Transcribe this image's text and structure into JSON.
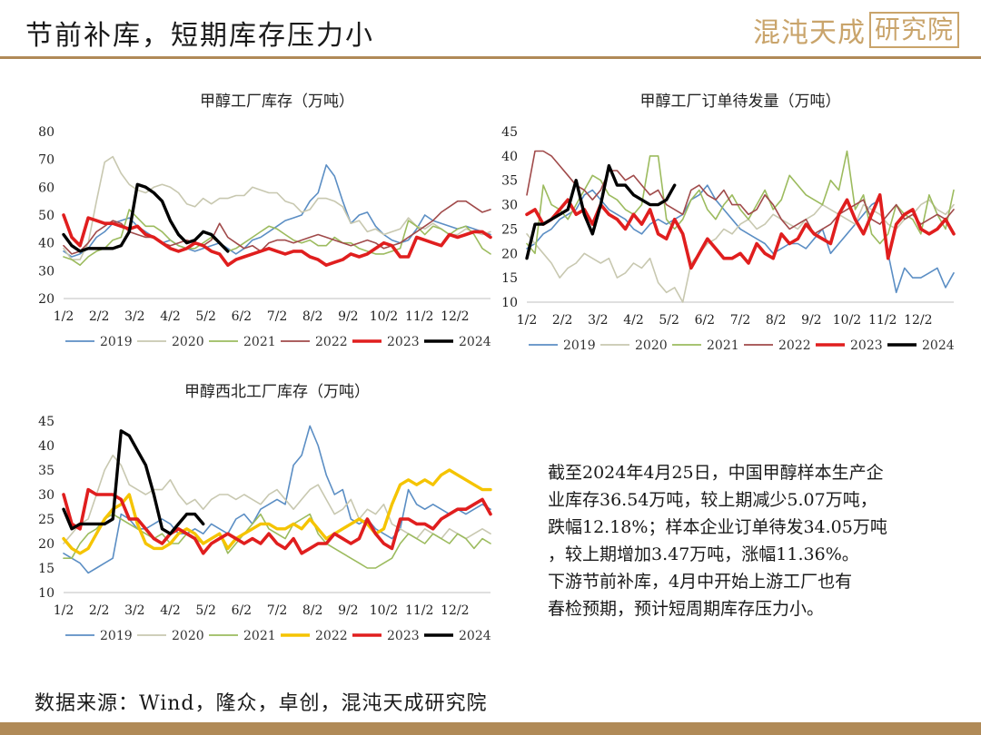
{
  "header": {
    "title": "节前补库，短期库存压力小",
    "brand_main": "混沌天成",
    "brand_box": "研究院"
  },
  "colors": {
    "accent_gold": "#b08a57",
    "s2019": "#5b8ec4",
    "s2020": "#c8c8b0",
    "s2021": "#9cbb5e",
    "s2022_chart12": "#a04a4a",
    "s2022_chart3": "#f5c400",
    "s2023": "#e01e1e",
    "s2024": "#000000"
  },
  "info": {
    "lines": [
      "截至2024年4月25日，中国甲醇样本生产企",
      "业库存36.54万吨，较上期减少5.07万吨，",
      "跌幅12.18%；样本企业订单待发34.05万吨",
      "，较上期增加3.47万吨，涨幅11.36%。",
      "下游节前补库，4月中开始上游工厂也有",
      "春检预期，预计短周期库存压力小。"
    ]
  },
  "source": "数据来源：Wind，隆众，卓创，混沌天成研究院",
  "chart_data": [
    {
      "type": "line",
      "title": "甲醇工厂库存（万吨）",
      "x_labels": [
        "1/2",
        "2/2",
        "3/2",
        "4/2",
        "5/2",
        "6/2",
        "7/2",
        "8/2",
        "9/2",
        "10/2",
        "11/2",
        "12/2"
      ],
      "x_range": [
        0,
        52
      ],
      "ylim": [
        20,
        80
      ],
      "yticks": [
        20,
        30,
        40,
        50,
        60,
        70,
        80
      ],
      "legend": "bottom",
      "series": [
        {
          "name": "2019",
          "color": "#5b8ec4",
          "width": 1.6,
          "values": [
            37,
            35,
            36,
            38,
            42,
            44,
            47,
            48,
            49,
            46,
            44,
            42,
            40,
            41,
            39,
            38,
            37,
            38,
            39,
            40,
            38,
            36,
            38,
            41,
            42,
            44,
            46,
            48,
            49,
            50,
            55,
            58,
            68,
            64,
            55,
            47,
            50,
            51,
            46,
            43,
            41,
            40,
            41,
            45,
            50,
            48,
            47,
            46,
            45,
            46,
            45,
            44,
            43
          ]
        },
        {
          "name": "2020",
          "color": "#c8c8b0",
          "width": 1.6,
          "values": [
            38,
            34,
            34,
            40,
            55,
            69,
            71,
            65,
            61,
            59,
            58,
            60,
            61,
            60,
            58,
            54,
            53,
            56,
            54,
            56,
            56,
            57,
            57,
            60,
            59,
            58,
            58,
            55,
            54,
            51,
            52,
            56,
            56,
            55,
            53,
            47,
            48,
            44,
            45,
            43,
            44,
            45,
            49,
            46,
            45,
            47,
            45,
            43,
            43,
            45,
            44,
            43,
            44
          ]
        },
        {
          "name": "2021",
          "color": "#9cbb5e",
          "width": 1.6,
          "values": [
            35,
            34,
            32,
            35,
            37,
            38,
            41,
            42,
            52,
            49,
            46,
            46,
            44,
            41,
            39,
            38,
            38,
            40,
            42,
            40,
            37,
            38,
            40,
            42,
            44,
            46,
            45,
            43,
            41,
            40,
            41,
            39,
            39,
            42,
            40,
            40,
            38,
            37,
            36,
            36,
            37,
            38,
            48,
            46,
            43,
            46,
            45,
            43,
            45,
            46,
            43,
            38,
            36
          ]
        },
        {
          "name": "2022",
          "color": "#a04a4a",
          "width": 1.6,
          "values": [
            39,
            36,
            37,
            40,
            44,
            46,
            48,
            47,
            44,
            43,
            42,
            42,
            40,
            39,
            40,
            41,
            40,
            39,
            41,
            47,
            42,
            40,
            38,
            39,
            37,
            40,
            41,
            41,
            40,
            41,
            42,
            43,
            42,
            41,
            40,
            39,
            40,
            41,
            40,
            38,
            39,
            40,
            42,
            44,
            46,
            48,
            51,
            53,
            55,
            55,
            53,
            51,
            52
          ]
        },
        {
          "name": "2023",
          "color": "#e01e1e",
          "width": 3.6,
          "values": [
            50,
            42,
            39,
            49,
            48,
            47,
            47,
            46,
            45,
            46,
            43,
            42,
            40,
            38,
            37,
            38,
            40,
            39,
            37,
            36,
            32,
            34,
            35,
            36,
            37,
            38,
            37,
            36,
            37,
            37,
            35,
            34,
            32,
            33,
            34,
            36,
            35,
            36,
            38,
            40,
            39,
            35,
            35,
            42,
            41,
            40,
            39,
            43,
            42,
            43,
            44,
            44,
            42
          ]
        },
        {
          "name": "2024",
          "color": "#000000",
          "width": 3.4,
          "values": [
            43,
            39,
            37,
            38,
            38,
            38,
            38,
            39,
            44,
            61,
            60,
            58,
            55,
            48,
            43,
            40,
            41,
            44,
            43,
            40,
            37
          ]
        }
      ]
    },
    {
      "type": "line",
      "title": "甲醇工厂订单待发量（万吨）",
      "x_labels": [
        "1/2",
        "2/2",
        "3/2",
        "4/2",
        "5/2",
        "6/2",
        "7/2",
        "8/2",
        "9/2",
        "10/2",
        "11/2",
        "12/2"
      ],
      "x_range": [
        0,
        52
      ],
      "ylim": [
        10,
        45
      ],
      "yticks": [
        10,
        15,
        20,
        25,
        30,
        35,
        40,
        45
      ],
      "legend": "bottom",
      "series": [
        {
          "name": "2019",
          "color": "#5b8ec4",
          "width": 1.6,
          "values": [
            21,
            22,
            24,
            25,
            27,
            28,
            29,
            32,
            33,
            31,
            29,
            28,
            27,
            25,
            24,
            26,
            27,
            26,
            27,
            28,
            31,
            32,
            34,
            31,
            29,
            27,
            25,
            24,
            23,
            22,
            20,
            21,
            22,
            22,
            21,
            23,
            25,
            20,
            22,
            24,
            26,
            28,
            30,
            31,
            20,
            12,
            17,
            15,
            15,
            16,
            17,
            13,
            16
          ]
        },
        {
          "name": "2020",
          "color": "#c8c8b0",
          "width": 1.6,
          "values": [
            24,
            22,
            20,
            18,
            15,
            17,
            18,
            20,
            19,
            18,
            19,
            15,
            16,
            18,
            17,
            19,
            14,
            12,
            13,
            10,
            18,
            20,
            22,
            23,
            25,
            24,
            26,
            27,
            25,
            26,
            28,
            27,
            26,
            25,
            27,
            28,
            30,
            29,
            28,
            27,
            26,
            30,
            29,
            28,
            26,
            25,
            27,
            28,
            30,
            31,
            29,
            28,
            30
          ]
        },
        {
          "name": "2021",
          "color": "#9cbb5e",
          "width": 1.6,
          "values": [
            22,
            20,
            34,
            30,
            29,
            27,
            30,
            33,
            36,
            35,
            32,
            31,
            29,
            28,
            30,
            40,
            40,
            27,
            25,
            27,
            31,
            33,
            29,
            27,
            30,
            32,
            29,
            27,
            30,
            33,
            29,
            31,
            36,
            34,
            32,
            31,
            30,
            35,
            33,
            41,
            29,
            32,
            24,
            22,
            24,
            30,
            28,
            27,
            24,
            32,
            28,
            25,
            33
          ]
        },
        {
          "name": "2022",
          "color": "#a04a4a",
          "width": 1.6,
          "values": [
            32,
            41,
            41,
            40,
            38,
            36,
            34,
            33,
            31,
            33,
            37,
            37,
            35,
            36,
            34,
            32,
            33,
            30,
            29,
            28,
            33,
            34,
            32,
            31,
            33,
            30,
            30,
            28,
            29,
            32,
            30,
            27,
            25,
            26,
            27,
            24,
            25,
            26,
            28,
            29,
            30,
            31,
            27,
            26,
            28,
            30,
            27,
            28,
            26,
            27,
            28,
            27,
            29
          ]
        },
        {
          "name": "2023",
          "color": "#e01e1e",
          "width": 3.6,
          "values": [
            28,
            29,
            26,
            27,
            29,
            31,
            28,
            29,
            26,
            30,
            28,
            27,
            25,
            28,
            26,
            29,
            24,
            23,
            27,
            24,
            17,
            20,
            23,
            21,
            19,
            19,
            20,
            18,
            22,
            20,
            19,
            24,
            22,
            23,
            26,
            24,
            23,
            22,
            28,
            31,
            27,
            24,
            28,
            32,
            19,
            26,
            28,
            29,
            25,
            24,
            25,
            27,
            24
          ]
        },
        {
          "name": "2024",
          "color": "#000000",
          "width": 3.4,
          "values": [
            19,
            26,
            26,
            27,
            28,
            29,
            35,
            28,
            24,
            30,
            38,
            34,
            34,
            32,
            31,
            30,
            30,
            31,
            34
          ]
        }
      ]
    },
    {
      "type": "line",
      "title": "甲醇西北工厂库存（万吨）",
      "x_labels": [
        "1/2",
        "2/2",
        "3/2",
        "4/2",
        "5/2",
        "6/2",
        "7/2",
        "8/2",
        "9/2",
        "10/2",
        "11/2",
        "12/2"
      ],
      "x_range": [
        0,
        52
      ],
      "ylim": [
        10,
        45
      ],
      "yticks": [
        10,
        15,
        20,
        25,
        30,
        35,
        40,
        45
      ],
      "legend": "bottom",
      "series": [
        {
          "name": "2019",
          "color": "#5b8ec4",
          "width": 1.6,
          "values": [
            18,
            17,
            16,
            14,
            15,
            16,
            17,
            26,
            25,
            23,
            23,
            24,
            25,
            24,
            22,
            22,
            23,
            22,
            24,
            23,
            22,
            25,
            26,
            24,
            27,
            28,
            29,
            28,
            36,
            38,
            44,
            40,
            34,
            30,
            31,
            25,
            24,
            25,
            23,
            22,
            21,
            23,
            31,
            28,
            27,
            28,
            27,
            26,
            27,
            26,
            27,
            28,
            27
          ]
        },
        {
          "name": "2020",
          "color": "#c8c8b0",
          "width": 1.6,
          "values": [
            20,
            22,
            24,
            25,
            30,
            35,
            38,
            36,
            32,
            31,
            30,
            31,
            31,
            33,
            30,
            28,
            29,
            27,
            29,
            30,
            30,
            29,
            30,
            29,
            28,
            30,
            31,
            29,
            27,
            29,
            31,
            32,
            29,
            26,
            27,
            29,
            25,
            27,
            26,
            28,
            24,
            23,
            22,
            21,
            23,
            22,
            21,
            23,
            22,
            21,
            22,
            23,
            22
          ]
        },
        {
          "name": "2021",
          "color": "#9cbb5e",
          "width": 1.6,
          "values": [
            17,
            17,
            20,
            22,
            23,
            25,
            26,
            25,
            24,
            23,
            22,
            21,
            22,
            20,
            20,
            22,
            21,
            20,
            21,
            22,
            18,
            20,
            22,
            24,
            26,
            23,
            22,
            21,
            24,
            25,
            26,
            22,
            20,
            19,
            18,
            17,
            16,
            15,
            15,
            16,
            17,
            20,
            22,
            21,
            20,
            22,
            21,
            20,
            22,
            21,
            19,
            21,
            20
          ]
        },
        {
          "name": "2022",
          "color": "#f5c400",
          "width": 3.4,
          "values": [
            21,
            19,
            18,
            19,
            22,
            25,
            27,
            28,
            30,
            24,
            20,
            19,
            19,
            20,
            22,
            23,
            22,
            20,
            21,
            22,
            19,
            21,
            22,
            23,
            24,
            24,
            23,
            23,
            24,
            23,
            25,
            23,
            21,
            22,
            23,
            24,
            25,
            24,
            22,
            23,
            28,
            32,
            33,
            32,
            33,
            32,
            34,
            35,
            34,
            33,
            32,
            31,
            31
          ]
        },
        {
          "name": "2023",
          "color": "#e01e1e",
          "width": 3.6,
          "values": [
            30,
            24,
            23,
            31,
            30,
            30,
            30,
            29,
            25,
            25,
            23,
            21,
            20,
            22,
            23,
            22,
            21,
            18,
            20,
            21,
            22,
            21,
            20,
            21,
            20,
            22,
            20,
            19,
            21,
            18,
            19,
            20,
            20,
            22,
            21,
            20,
            21,
            25,
            22,
            20,
            19,
            25,
            25,
            24,
            24,
            23,
            25,
            26,
            27,
            27,
            28,
            29,
            26
          ]
        },
        {
          "name": "2024",
          "color": "#000000",
          "width": 3.4,
          "values": [
            27,
            23,
            24,
            24,
            24,
            24,
            25,
            43,
            42,
            39,
            36,
            30,
            23,
            22,
            24,
            26,
            26,
            24
          ]
        }
      ]
    }
  ]
}
